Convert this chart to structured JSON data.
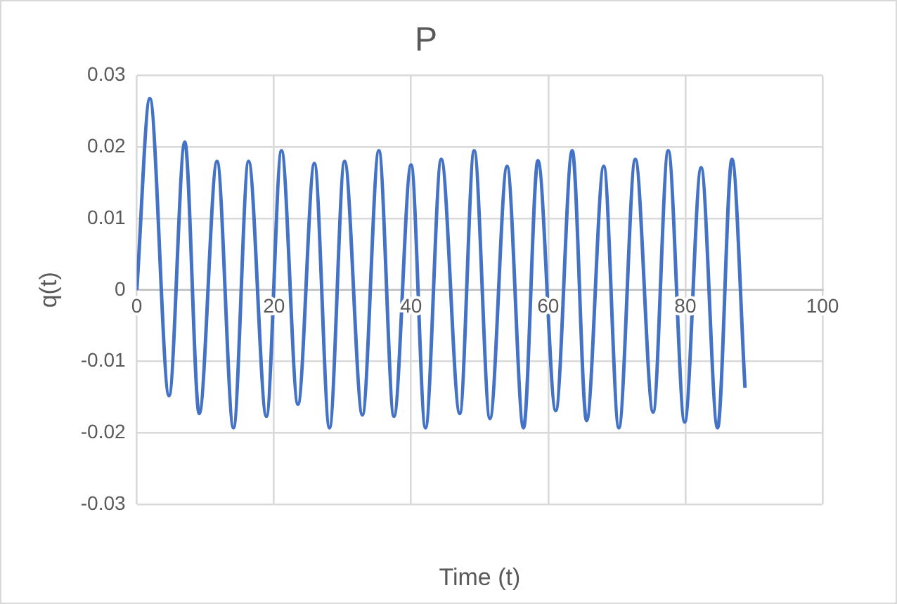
{
  "chart_data": {
    "type": "line",
    "title": "P",
    "xlabel": "Time (t)",
    "ylabel": "q(t)",
    "xlim": [
      0,
      100
    ],
    "xticks": [
      0,
      20,
      40,
      60,
      80,
      100
    ],
    "ylim": [
      -0.03,
      0.03
    ],
    "yticks": [
      -0.03,
      -0.02,
      -0.01,
      0,
      0.01,
      0.02,
      0.03
    ],
    "grid": true,
    "legend": false,
    "marker": "none",
    "line_style": "solid",
    "series": [
      {
        "color": "#4472c4",
        "x": [
          0,
          1.9,
          4.7,
          7.0,
          9.1,
          11.7,
          14.1,
          16.3,
          18.9,
          21.1,
          23.5,
          25.9,
          28.1,
          30.3,
          32.9,
          35.3,
          37.5,
          40.0,
          42.1,
          44.4,
          47.1,
          49.2,
          51.5,
          54.0,
          56.4,
          58.5,
          61.1,
          63.5,
          65.6,
          68.1,
          70.3,
          72.7,
          75.3,
          77.5,
          79.9,
          82.3,
          84.7,
          86.8,
          88.7
        ],
        "values": [
          0,
          0.0268,
          -0.0148,
          0.0207,
          -0.0173,
          0.018,
          -0.0193,
          0.018,
          -0.0177,
          0.0195,
          -0.016,
          0.0177,
          -0.0193,
          0.018,
          -0.0175,
          0.0195,
          -0.0177,
          0.0175,
          -0.0193,
          0.0183,
          -0.0173,
          0.0195,
          -0.018,
          0.0173,
          -0.0193,
          0.0181,
          -0.0169,
          0.0195,
          -0.0183,
          0.0173,
          -0.0193,
          0.0183,
          -0.0171,
          0.0195,
          -0.0185,
          0.0171,
          -0.0193,
          0.0183,
          -0.0137
        ]
      }
    ]
  }
}
